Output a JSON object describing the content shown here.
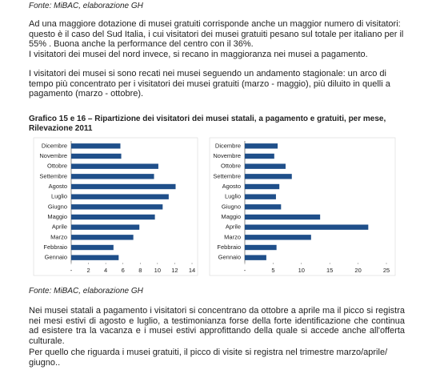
{
  "source_top": "Fonte: MiBAC, elaborazione GH",
  "paragraph_1": "Ad una maggiore dotazione di musei gratuiti corrisponde anche un maggior numero di visitatori: questo è il caso del Sud Italia, i cui visitatori dei musei gratuiti pesano sul totale per italiano per il 55% . Buona anche la performance del centro con il 36%.",
  "paragraph_1b": "I visitatori dei musei del nord invece, si recano in maggioranza nei musei a pagamento.",
  "paragraph_2": "I visitatori dei musei si sono recati nei musei seguendo un andamento stagionale: un arco di tempo più concentrato per i visitatori dei musei gratuiti (marzo - maggio), più diluito in quelli a pagamento (marzo - ottobre).",
  "chart_heading": "Grafico 15 e 16  – Ripartizione dei visitatori dei musei statali, a pagamento e gratuiti,  per mese, Rilevazione 2011",
  "chart_data": [
    {
      "type": "bar",
      "orientation": "horizontal",
      "color": "#1f4f8a",
      "categories": [
        "Dicembre",
        "Novembre",
        "Ottobre",
        "Settembre",
        "Agosto",
        "Luglio",
        "Giugno",
        "Maggio",
        "Aprile",
        "Marzo",
        "Febbraio",
        "Gennaio"
      ],
      "values": [
        5.7,
        5.8,
        10.1,
        9.6,
        12.1,
        11.3,
        10.6,
        9.7,
        7.9,
        7.2,
        4.9,
        5.5
      ],
      "xlim": [
        0,
        14
      ],
      "xticks": [
        {
          "value": 0,
          "label": "-"
        },
        2,
        4,
        6,
        8,
        10,
        12,
        14
      ]
    },
    {
      "type": "bar",
      "orientation": "horizontal",
      "color": "#1f4f8a",
      "categories": [
        "Dicembre",
        "Novembre",
        "Ottobre",
        "Settembre",
        "Agosto",
        "Luglio",
        "Giugno",
        "Maggio",
        "Aprile",
        "Marzo",
        "Febbraio",
        "Gennaio"
      ],
      "values": [
        5.8,
        5.2,
        7.2,
        8.3,
        6.1,
        5.5,
        6.4,
        13.3,
        21.8,
        11.7,
        5.6,
        3.8
      ],
      "xlim": [
        0,
        25
      ],
      "xticks": [
        {
          "value": 0,
          "label": "-"
        },
        5,
        10,
        15,
        20,
        25
      ]
    }
  ],
  "source_bottom": "Fonte: MiBAC, elaborazione GH",
  "paragraph_3": "Nei musei statali a pagamento i visitatori si concentrano da ottobre a aprile ma il picco si registra nei mesi estivi di agosto e luglio, a testimonianza forse della forte identificazione che continua ad esistere tra la vacanza e i musei estivi approfittando della quale si accede anche all'offerta culturale.",
  "paragraph_4": "Per quello che riguarda i musei gratuiti, il picco di visite si registra nel trimestre marzo/aprile/ giugno.."
}
